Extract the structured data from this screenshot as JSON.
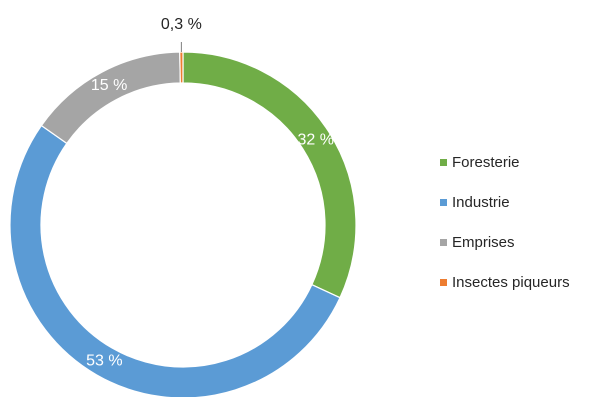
{
  "chart_data": {
    "type": "pie",
    "donut": true,
    "title": "",
    "legend_position": "right",
    "categories": [
      "Foresterie",
      "Industrie",
      "Emprises",
      "Insectes piqueurs"
    ],
    "values": [
      32,
      53,
      15,
      0.3
    ],
    "labels": [
      "32 %",
      "53 %",
      "15 %",
      "0,3 %"
    ],
    "colors": [
      "#70ad47",
      "#5b9bd5",
      "#a5a5a5",
      "#ed7d31"
    ]
  }
}
